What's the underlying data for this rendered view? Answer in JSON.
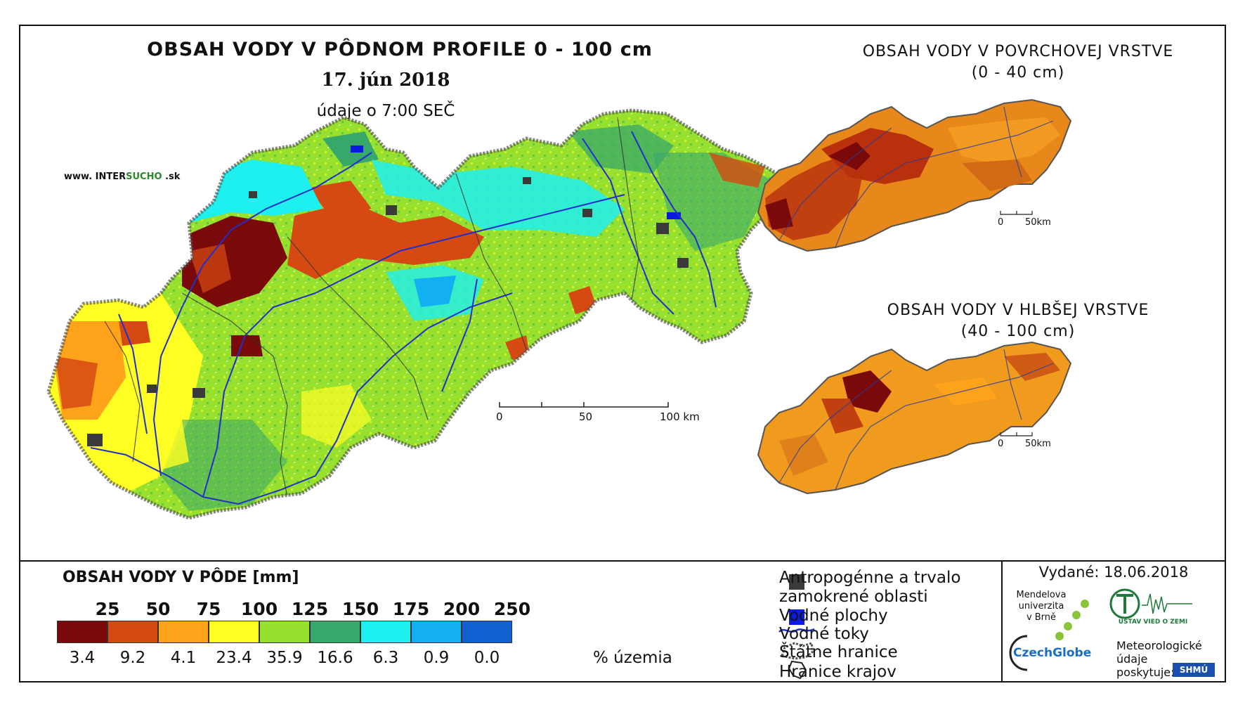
{
  "main_map": {
    "title": "OBSAH VODY V PÔDNOM PROFILE 0 - 100 cm",
    "date": "17. jún 2018",
    "subtitle": "údaje o 7:00 SEČ",
    "website_prefix": "www. INTER",
    "website_accent": "SUCHO",
    "website_suffix": " .sk",
    "scale_labels": [
      "0",
      "50",
      "100 km"
    ]
  },
  "inset_surface": {
    "title_line1": "OBSAH VODY V POVRCHOVEJ VRSTVE",
    "title_line2": "(0 - 40 cm)",
    "scale_labels": [
      "0",
      "50km"
    ]
  },
  "inset_deep": {
    "title_line1": "OBSAH VODY V HLBŠEJ VRSTVE",
    "title_line2": "(40 - 100 cm)",
    "scale_labels": [
      "0",
      "50km"
    ]
  },
  "legend": {
    "title": "OBSAH VODY V PÔDE [mm]",
    "unit": "% územia",
    "classes": [
      {
        "upper": "25",
        "color": "#7a0a0a",
        "percent": "3.4"
      },
      {
        "upper": "50",
        "color": "#d54a12",
        "percent": "9.2"
      },
      {
        "upper": "75",
        "color": "#ffa31a",
        "percent": "4.1"
      },
      {
        "upper": "100",
        "color": "#ffff24",
        "percent": "23.4"
      },
      {
        "upper": "125",
        "color": "#96e02e",
        "percent": "35.9"
      },
      {
        "upper": "150",
        "color": "#38a86a",
        "percent": "16.6"
      },
      {
        "upper": "175",
        "color": "#1ef0f0",
        "percent": "6.3"
      },
      {
        "upper": "200",
        "color": "#12b0f0",
        "percent": "0.9"
      },
      {
        "upper": "250",
        "color": "#1060d0",
        "percent": "0.0"
      }
    ]
  },
  "symbols": {
    "anthropogenic_line1": "Antropogénne a trvalo",
    "anthropogenic_line2": "zamokrené oblasti",
    "water_bodies": "Vodné plochy",
    "rivers": "Vodné toky",
    "state_border": "Štátne hranice",
    "region_border": "Hranice krajov"
  },
  "footer": {
    "issued": "Vydané: 18.06.2018",
    "mendel_line1": "Mendelova",
    "mendel_line2": "univerzita",
    "mendel_line3": "v Brně",
    "czechglobe": "CzechGlobe",
    "institute": "ÚSTAV VIED O ZEMI",
    "met_line1": "Meteorologické",
    "met_line2": "údaje",
    "met_line3": "poskytuje:",
    "shmu": "SHMÚ"
  },
  "colors": {
    "anthropogenic": "#3a3a3a",
    "water": "#0a1ae0",
    "river": "#2030c8",
    "border": "#222222"
  }
}
